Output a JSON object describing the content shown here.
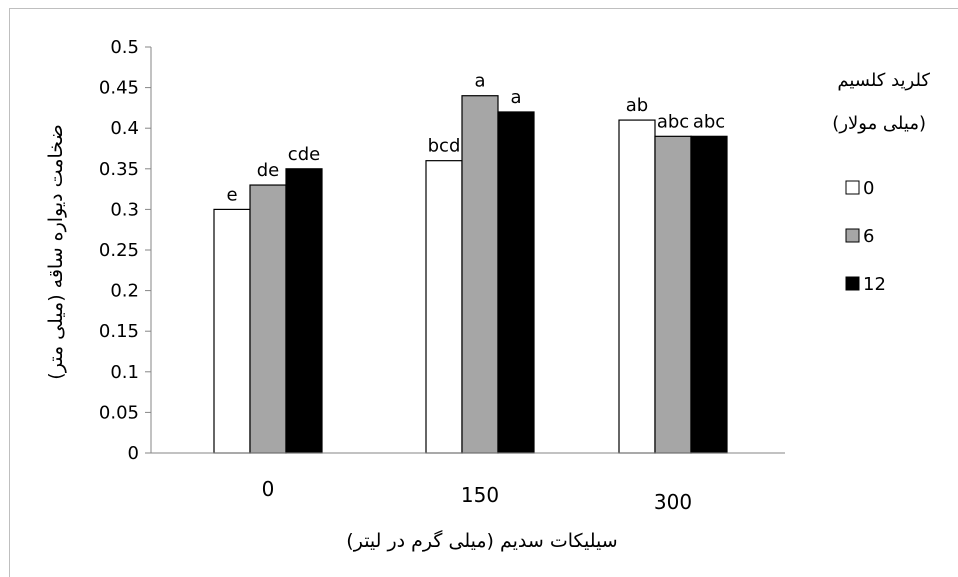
{
  "chart_data": {
    "type": "bar",
    "title": "",
    "xlabel": "سیلیکات سدیم (میلی گرم در لیتر)",
    "ylabel": "ضخامت دیواره ساقه (میلی متر)",
    "ylim": [
      0,
      0.5
    ],
    "yticks": [
      "0",
      "0.05",
      "0.1",
      "0.15",
      "0.2",
      "0.25",
      "0.3",
      "0.35",
      "0.4",
      "0.45",
      "0.5"
    ],
    "categories": [
      "0",
      "150",
      "300"
    ],
    "series": [
      {
        "name": "0",
        "color": "#ffffff",
        "values": [
          0.3,
          0.36,
          0.41
        ],
        "labels": [
          "e",
          "bcd",
          "ab"
        ]
      },
      {
        "name": "6",
        "color": "#a6a6a6",
        "values": [
          0.33,
          0.44,
          0.39
        ],
        "labels": [
          "de",
          "a",
          "abc"
        ]
      },
      {
        "name": "12",
        "color": "#000000",
        "values": [
          0.35,
          0.42,
          0.39
        ],
        "labels": [
          "cde",
          "a",
          "abc"
        ]
      }
    ],
    "legend": {
      "title_line1": "کلرید کلسیم",
      "title_line2": "(میلی مولار)",
      "position": "right"
    },
    "grid": false
  }
}
